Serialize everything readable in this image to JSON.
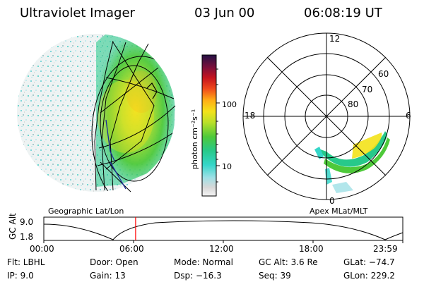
{
  "header": {
    "instrument": "Ultraviolet Imager",
    "date": "03 Jun 00",
    "time": "06:08:19 UT"
  },
  "colorbar": {
    "label": "photon cm⁻²s⁻¹",
    "ticks": [
      "100",
      "10"
    ]
  },
  "polar_plot": {
    "mlt_labels": [
      "12",
      "18",
      "6",
      "0"
    ],
    "mlat_labels": [
      "60",
      "70",
      "80"
    ]
  },
  "map_caption": "Geographic Lat/Lon",
  "polar_caption": "Apex MLat/MLT",
  "timeline": {
    "ylabel": "GC Alt",
    "ymax": "9.0",
    "ymin": "1.8",
    "x_ticks": [
      "00:00",
      "06:00",
      "12:00",
      "18:00",
      "23:59"
    ],
    "current_time_fraction": 0.2557,
    "marker_color": "#ff0000"
  },
  "info": {
    "filter": "Flt: LBHL",
    "ip": "IP:  9.0",
    "door": "Door: Open",
    "gain": "Gain: 13",
    "mode": "Mode: Normal",
    "dsp": "Dsp:  −16.3",
    "gc_alt": "GC Alt: 3.6 Re",
    "seq": "Seq: 39",
    "glat": "GLat:  −74.7",
    "glon": "GLon: 229.2"
  }
}
